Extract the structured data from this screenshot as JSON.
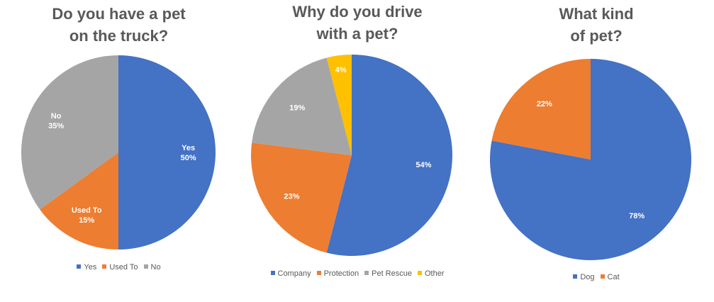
{
  "chart_data": [
    {
      "type": "pie",
      "title_lines": [
        "Do you have a pet",
        "on the truck?"
      ],
      "slices": [
        {
          "label": "Yes",
          "value": 50,
          "value_label": "50%",
          "color": "#4472c4",
          "show_name": true
        },
        {
          "label": "Used To",
          "value": 15,
          "value_label": "15%",
          "color": "#ed7d31",
          "show_name": true
        },
        {
          "label": "No",
          "value": 35,
          "value_label": "35%",
          "color": "#a5a5a5",
          "show_name": true
        }
      ],
      "legend": [
        "Yes",
        "Used To",
        "No"
      ],
      "legend_position": "bottom"
    },
    {
      "type": "pie",
      "title_lines": [
        "Why do you drive",
        "with a pet?"
      ],
      "slices": [
        {
          "label": "Company",
          "value": 54,
          "value_label": "54%",
          "color": "#4472c4",
          "show_name": false
        },
        {
          "label": "Protection",
          "value": 23,
          "value_label": "23%",
          "color": "#ed7d31",
          "show_name": false
        },
        {
          "label": "Pet Rescue",
          "value": 19,
          "value_label": "19%",
          "color": "#a5a5a5",
          "show_name": false
        },
        {
          "label": "Other",
          "value": 4,
          "value_label": "4%",
          "color": "#ffc000",
          "show_name": false
        }
      ],
      "legend": [
        "Company",
        "Protection",
        "Pet Rescue",
        "Other"
      ],
      "legend_position": "bottom"
    },
    {
      "type": "pie",
      "title_lines": [
        "What kind",
        "of pet?"
      ],
      "slices": [
        {
          "label": "Dog",
          "value": 78,
          "value_label": "78%",
          "color": "#4472c4",
          "show_name": false
        },
        {
          "label": "Cat",
          "value": 22,
          "value_label": "22%",
          "color": "#ed7d31",
          "show_name": false
        }
      ],
      "legend": [
        "Dog",
        "Cat"
      ],
      "legend_position": "bottom"
    }
  ]
}
